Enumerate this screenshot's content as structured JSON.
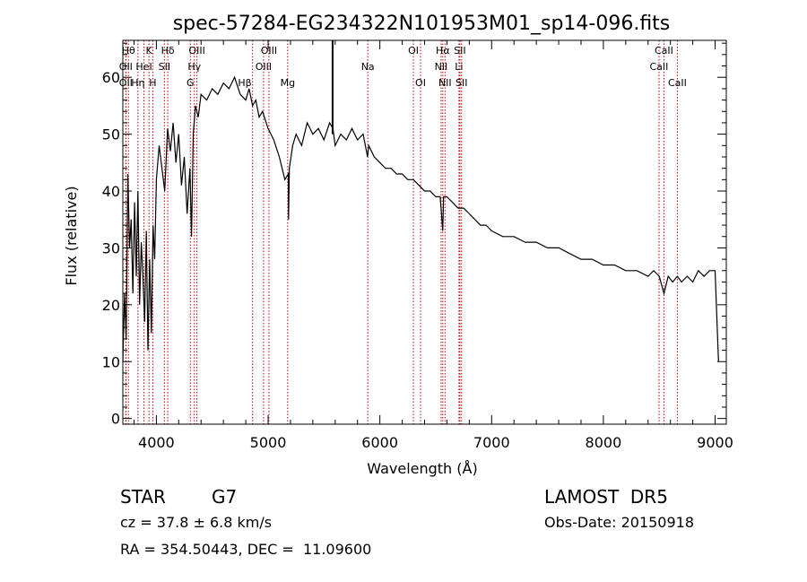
{
  "chart_data": {
    "type": "line",
    "title": "spec-57284-EG234322N101953M01_sp14-096.fits",
    "xlabel": "Wavelength (Å)",
    "ylabel": "Flux (relative)",
    "xlim": [
      3700,
      9100
    ],
    "ylim": [
      -1,
      66.5
    ],
    "xticks": [
      4000,
      5000,
      6000,
      7000,
      8000,
      9000
    ],
    "yticks": [
      0,
      10,
      20,
      30,
      40,
      50,
      60
    ],
    "xminor_step": 200,
    "yminor_step": 2,
    "grid": false,
    "line_color": "#000000",
    "marker_color": "#c00000",
    "series": [
      {
        "x": [
          3700,
          3715,
          3730,
          3745,
          3760,
          3775,
          3790,
          3805,
          3820,
          3835,
          3850,
          3865,
          3880,
          3895,
          3910,
          3925,
          3940,
          3955,
          3970,
          3985,
          4000,
          4025,
          4050,
          4075,
          4100,
          4125,
          4150,
          4175,
          4200,
          4225,
          4250,
          4275,
          4300,
          4315,
          4330,
          4350,
          4375,
          4400,
          4450,
          4500,
          4550,
          4600,
          4650,
          4700,
          4750,
          4800,
          4830,
          4861,
          4890,
          4920,
          4950,
          5000,
          5050,
          5100,
          5150,
          5180,
          5183,
          5190,
          5220,
          5250,
          5300,
          5350,
          5400,
          5450,
          5500,
          5550,
          5580,
          5600,
          5650,
          5700,
          5750,
          5800,
          5850,
          5890,
          5900,
          5950,
          6000,
          6050,
          6100,
          6150,
          6200,
          6250,
          6300,
          6350,
          6400,
          6450,
          6500,
          6540,
          6563,
          6570,
          6600,
          6650,
          6700,
          6750,
          6800,
          6850,
          6900,
          6950,
          7000,
          7100,
          7200,
          7300,
          7400,
          7500,
          7600,
          7700,
          7800,
          7900,
          8000,
          8100,
          8200,
          8300,
          8400,
          8450,
          8500,
          8542,
          8580,
          8620,
          8662,
          8700,
          8750,
          8800,
          8850,
          8900,
          8950,
          9000,
          9030
        ],
        "y": [
          10,
          22,
          14,
          43,
          30,
          35,
          22,
          38,
          25,
          40,
          20,
          31,
          25,
          17,
          33,
          12,
          28,
          15,
          34,
          28,
          42,
          48,
          44,
          40,
          51,
          47,
          52,
          45,
          50,
          41,
          46,
          36,
          44,
          32,
          50,
          55,
          53,
          57,
          56,
          58,
          57,
          59,
          58,
          60,
          57,
          56,
          58,
          55,
          56,
          53,
          54,
          51,
          49,
          46,
          42,
          43,
          35,
          44,
          48,
          50,
          48,
          52,
          50,
          51,
          49,
          52,
          51,
          48,
          50,
          49,
          51,
          49,
          50,
          46,
          48,
          46,
          45,
          44,
          44,
          43,
          43,
          42,
          42,
          41,
          40,
          40,
          39,
          39,
          33,
          39,
          39,
          38,
          37,
          37,
          36,
          35,
          34,
          34,
          33,
          32,
          32,
          31,
          31,
          30,
          30,
          29,
          28,
          28,
          27,
          27,
          26,
          26,
          25,
          26,
          25,
          22,
          25,
          24,
          25,
          24,
          25,
          24,
          26,
          25,
          26,
          26,
          10
        ]
      }
    ],
    "spike": {
      "x": 5577,
      "y": 66.5
    },
    "lines": [
      {
        "x": 3750,
        "label": "Hθ",
        "row": 0,
        "side": "center"
      },
      {
        "x": 3727,
        "label": "OII",
        "row": 1,
        "side": "center"
      },
      {
        "x": 3727,
        "label": "OII",
        "row": 2,
        "side": "center"
      },
      {
        "x": 3835,
        "label": "Hη",
        "row": 2,
        "side": "center"
      },
      {
        "x": 3889,
        "label": "HeI",
        "row": 1,
        "side": "center"
      },
      {
        "x": 3934,
        "label": "K",
        "row": 0,
        "side": "center"
      },
      {
        "x": 3968,
        "label": "H",
        "row": 2,
        "side": "center"
      },
      {
        "x": 4072,
        "label": "SII",
        "row": 1,
        "side": "center"
      },
      {
        "x": 4102,
        "label": "Hδ",
        "row": 0,
        "side": "center"
      },
      {
        "x": 4304,
        "label": "G",
        "row": 2,
        "side": "center"
      },
      {
        "x": 4340,
        "label": "Hγ",
        "row": 1,
        "side": "center"
      },
      {
        "x": 4363,
        "label": "OIII",
        "row": 0,
        "side": "center"
      },
      {
        "x": 4861,
        "label": "Hβ",
        "row": 2,
        "side": "left"
      },
      {
        "x": 4959,
        "label": "OIII",
        "row": 1,
        "side": "center"
      },
      {
        "x": 5007,
        "label": "OIII",
        "row": 0,
        "side": "center"
      },
      {
        "x": 5175,
        "label": "Mg",
        "row": 2,
        "side": "center"
      },
      {
        "x": 5892,
        "label": "Na",
        "row": 1,
        "side": "center"
      },
      {
        "x": 6300,
        "label": "OI",
        "row": 0,
        "side": "center"
      },
      {
        "x": 6364,
        "label": "OI",
        "row": 2,
        "side": "center"
      },
      {
        "x": 6548,
        "label": "NII",
        "row": 1,
        "side": "center"
      },
      {
        "x": 6563,
        "label": "Hα",
        "row": 0,
        "side": "center"
      },
      {
        "x": 6583,
        "label": "NII",
        "row": 2,
        "side": "center"
      },
      {
        "x": 6708,
        "label": "Li",
        "row": 1,
        "side": "center"
      },
      {
        "x": 6716,
        "label": "SII",
        "row": 0,
        "side": "center"
      },
      {
        "x": 6731,
        "label": "SII",
        "row": 2,
        "side": "center"
      },
      {
        "x": 8498,
        "label": "CaII",
        "row": 1,
        "side": "center"
      },
      {
        "x": 8542,
        "label": "CaII",
        "row": 0,
        "side": "center"
      },
      {
        "x": 8662,
        "label": "CaII",
        "row": 2,
        "side": "center"
      }
    ]
  },
  "info": {
    "object_class": "STAR",
    "subclass": "G7",
    "survey": "LAMOST  DR5",
    "cz": "cz = 37.8 ± 6.8 km/s",
    "obs_date": "Obs-Date: 20150918",
    "radec": "RA = 354.50443, DEC =  11.09600"
  }
}
